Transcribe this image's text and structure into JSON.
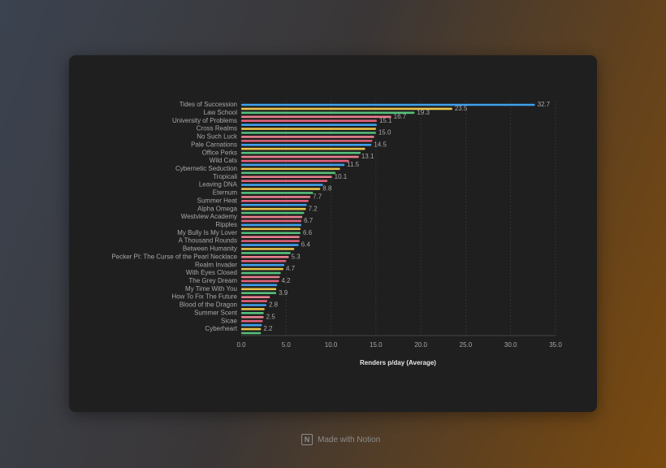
{
  "chart_data": {
    "type": "hbar",
    "x_label": "Renders p/day (Average)",
    "categories": [
      "Tides of Succession",
      null,
      "Law School",
      null,
      "University of Problems",
      null,
      "Cross Realms",
      null,
      "No Such Luck",
      null,
      "Pale Carnations",
      null,
      "Office Perks",
      null,
      "Wild Cats",
      null,
      "Cybernetic Seduction",
      null,
      "Tropicali",
      null,
      "Leaving DNA",
      null,
      "Eternum",
      null,
      "Summer Heat",
      null,
      "Alpha Omega",
      null,
      "Westview Academy",
      null,
      "Ripples",
      null,
      "My Bully Is My Lover",
      null,
      "A Thousand Rounds",
      null,
      "Between Humanity",
      null,
      "Pecker PI: The Curse of the Pearl Necklace",
      null,
      "Realm Invader",
      null,
      "With Eyes Closed",
      null,
      "The Grey Dream",
      null,
      "My Time With You",
      null,
      "How To Fix The Future",
      null,
      "Blood of the Dragon",
      null,
      "Summer Scent",
      null,
      "Sicae",
      null,
      "Cyberheart",
      null
    ],
    "values": [
      32.7,
      23.5,
      19.3,
      16.7,
      15.1,
      15.1,
      15.0,
      15.0,
      14.8,
      14.6,
      14.5,
      13.8,
      13.3,
      13.1,
      12.0,
      11.5,
      11.0,
      10.5,
      10.1,
      9.6,
      9.1,
      8.8,
      8.0,
      7.7,
      7.5,
      7.3,
      7.2,
      7.0,
      6.8,
      6.7,
      6.7,
      6.6,
      6.6,
      6.5,
      6.5,
      6.4,
      5.9,
      5.5,
      5.3,
      5.0,
      4.8,
      4.7,
      4.4,
      4.3,
      4.2,
      4.0,
      3.9,
      3.9,
      3.2,
      2.9,
      2.8,
      2.6,
      2.5,
      2.5,
      2.4,
      2.3,
      2.2,
      2.2
    ],
    "value_labels": [
      "32.7",
      "23.5",
      "19.3",
      "16.7",
      "15.1",
      null,
      null,
      "15.0",
      null,
      null,
      "14.5",
      null,
      null,
      "13.1",
      null,
      "11.5",
      null,
      null,
      "10.1",
      null,
      null,
      "8.8",
      null,
      "7.7",
      null,
      null,
      "7.2",
      null,
      null,
      "6.7",
      null,
      null,
      "6.6",
      null,
      null,
      "6.4",
      null,
      null,
      "5.3",
      null,
      null,
      "4.7",
      null,
      null,
      "4.2",
      null,
      null,
      "3.9",
      null,
      null,
      "2.8",
      null,
      null,
      "2.5",
      null,
      null,
      "2.2",
      null
    ],
    "palette": [
      "#3ea0ec",
      "#e9c44a",
      "#56c07a",
      "#e8808f",
      "#e0607a"
    ],
    "xlim": [
      0,
      35
    ],
    "xticks": [
      {
        "value": 0,
        "label": "0.0"
      },
      {
        "value": 5,
        "label": "5.0"
      },
      {
        "value": 10,
        "label": "10.0"
      },
      {
        "value": 15,
        "label": "15.0"
      },
      {
        "value": 20,
        "label": "20.0"
      },
      {
        "value": 25,
        "label": "25.0"
      },
      {
        "value": 30,
        "label": "30.0"
      },
      {
        "value": 35,
        "label": "35.0"
      }
    ],
    "grid": true
  },
  "footer": "Made with Notion"
}
